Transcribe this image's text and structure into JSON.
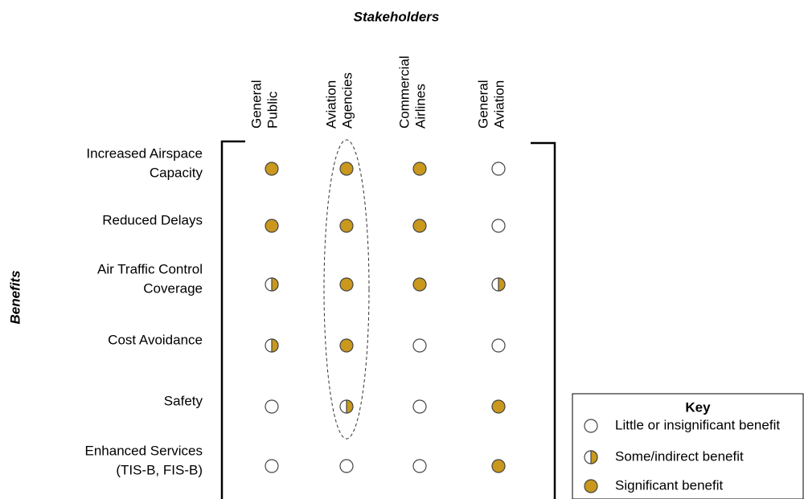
{
  "title": "Stakeholders",
  "row_axis_label": "Benefits",
  "columns": [
    [
      "General",
      "Public"
    ],
    [
      "Aviation",
      "Agencies"
    ],
    [
      "Commercial",
      "Airlines"
    ],
    [
      "General",
      "Aviation"
    ]
  ],
  "rows": [
    [
      "Increased Airspace",
      "Capacity"
    ],
    [
      "Reduced Delays"
    ],
    [
      "Air Traffic Control",
      "Coverage"
    ],
    [
      "Cost Avoidance"
    ],
    [
      "Safety"
    ],
    [
      "Enhanced Services",
      "(TIS-B, FIS-B)"
    ]
  ],
  "matrix": [
    [
      2,
      2,
      2,
      0
    ],
    [
      2,
      2,
      2,
      0
    ],
    [
      1,
      2,
      2,
      1
    ],
    [
      1,
      2,
      0,
      0
    ],
    [
      0,
      1,
      0,
      2
    ],
    [
      0,
      0,
      0,
      2
    ]
  ],
  "key": {
    "title": "Key",
    "items": [
      "Little or insignificant benefit",
      "Some/indirect benefit",
      "Significant benefit"
    ]
  }
}
